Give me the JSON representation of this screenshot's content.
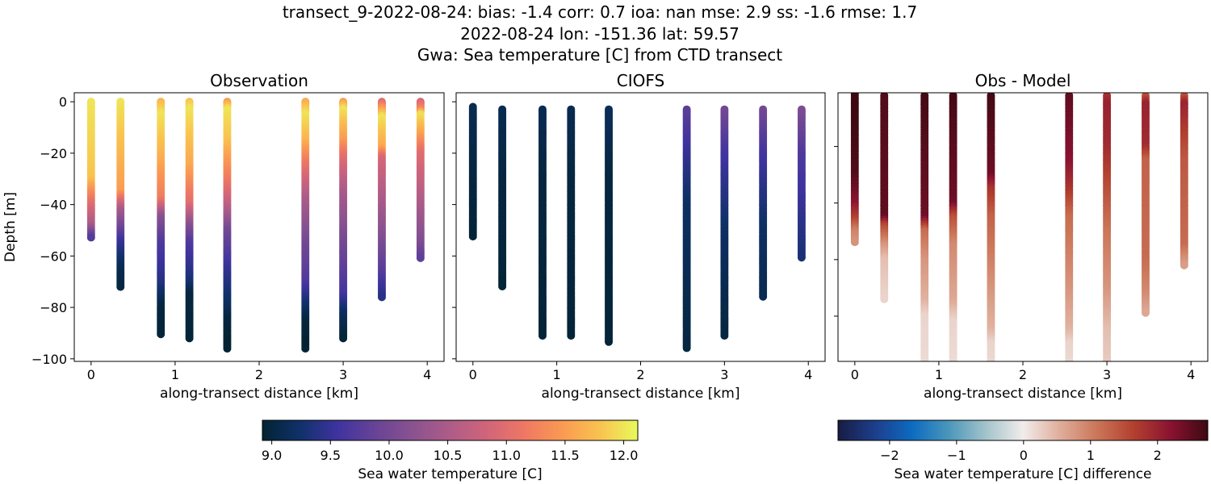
{
  "title_lines": [
    "transect_9-2022-08-24: bias: -1.4  corr: 0.7  ioa: nan  mse: 2.9  ss: -1.6  rmse: 1.7",
    "2022-08-24 lon: -151.36 lat: 59.57",
    "Gwa: Sea temperature [C] from CTD transect"
  ],
  "chart_data": [
    {
      "type": "scatter",
      "title": "Observation",
      "xlabel": "along-transect distance [km]",
      "ylabel": "Depth [m]",
      "xlim": [
        -0.2,
        4.2
      ],
      "ylim": [
        -101,
        3.5
      ],
      "xticks": [
        0,
        1,
        2,
        3,
        4
      ],
      "yticks": [
        0,
        -20,
        -40,
        -60,
        -80,
        -100
      ],
      "colormap": "thermal",
      "clim": [
        8.92,
        12.12
      ],
      "casts": [
        {
          "x": 0,
          "profile": [
            [
              0,
              12
            ],
            [
              30,
              11.8
            ],
            [
              40,
              11
            ],
            [
              48,
              10.5
            ],
            [
              53,
              9.7
            ]
          ]
        },
        {
          "x": 0.35,
          "profile": [
            [
              0,
              12
            ],
            [
              35,
              11.5
            ],
            [
              42,
              10.5
            ],
            [
              55,
              9.5
            ],
            [
              65,
              9.1
            ],
            [
              72,
              9.0
            ]
          ]
        },
        {
          "x": 0.83,
          "profile": [
            [
              0,
              11.7
            ],
            [
              5,
              12
            ],
            [
              20,
              11.7
            ],
            [
              38,
              11.2
            ],
            [
              45,
              10.2
            ],
            [
              55,
              9.7
            ],
            [
              70,
              9.4
            ],
            [
              80,
              9.0
            ],
            [
              91,
              8.95
            ]
          ]
        },
        {
          "x": 1.17,
          "profile": [
            [
              0,
              11.8
            ],
            [
              3,
              12
            ],
            [
              25,
              11.6
            ],
            [
              40,
              11.0
            ],
            [
              48,
              10.2
            ],
            [
              55,
              9.7
            ],
            [
              70,
              9.3
            ],
            [
              75,
              9.0
            ],
            [
              92,
              8.95
            ]
          ]
        },
        {
          "x": 1.62,
          "profile": [
            [
              0,
              11.5
            ],
            [
              3,
              12
            ],
            [
              15,
              11.8
            ],
            [
              30,
              11.2
            ],
            [
              40,
              10.7
            ],
            [
              50,
              10.0
            ],
            [
              65,
              9.5
            ],
            [
              78,
              9.2
            ],
            [
              85,
              9.0
            ],
            [
              96,
              8.9
            ]
          ]
        },
        {
          "x": 2.55,
          "profile": [
            [
              0,
              11.6
            ],
            [
              5,
              12
            ],
            [
              15,
              11.7
            ],
            [
              25,
              11.1
            ],
            [
              38,
              10.5
            ],
            [
              55,
              10
            ],
            [
              70,
              9.7
            ],
            [
              78,
              9.3
            ],
            [
              85,
              9.0
            ],
            [
              96,
              8.9
            ]
          ]
        },
        {
          "x": 3.0,
          "profile": [
            [
              0,
              11.5
            ],
            [
              3,
              12
            ],
            [
              15,
              11.5
            ],
            [
              22,
              11
            ],
            [
              35,
              10.5
            ],
            [
              55,
              10
            ],
            [
              75,
              9.6
            ],
            [
              82,
              9.2
            ],
            [
              92,
              8.95
            ]
          ]
        },
        {
          "x": 3.46,
          "profile": [
            [
              0,
              11
            ],
            [
              3,
              11.5
            ],
            [
              6,
              12
            ],
            [
              18,
              11.6
            ],
            [
              22,
              10.9
            ],
            [
              50,
              10.2
            ],
            [
              65,
              9.8
            ],
            [
              76,
              9.4
            ]
          ]
        },
        {
          "x": 3.92,
          "profile": [
            [
              0,
              10.9
            ],
            [
              3,
              11.3
            ],
            [
              5,
              12
            ],
            [
              12,
              11.6
            ],
            [
              20,
              11
            ],
            [
              40,
              10.5
            ],
            [
              55,
              10.1
            ],
            [
              61,
              9.8
            ]
          ]
        }
      ]
    },
    {
      "type": "scatter",
      "title": "CIOFS",
      "xlabel": "along-transect distance [km]",
      "xlim": [
        -0.2,
        4.2
      ],
      "ylim": [
        -101,
        3.5
      ],
      "xticks": [
        0,
        1,
        2,
        3,
        4
      ],
      "yticks": [
        0,
        -20,
        -40,
        -60,
        -80,
        -100
      ],
      "colormap": "thermal",
      "clim": [
        8.92,
        12.12
      ],
      "casts": [
        {
          "x": 0,
          "profile": [
            [
              2,
              9.1
            ],
            [
              30,
              9.0
            ],
            [
              53,
              8.95
            ]
          ]
        },
        {
          "x": 0.35,
          "profile": [
            [
              3,
              9.1
            ],
            [
              30,
              9.0
            ],
            [
              72,
              8.95
            ]
          ]
        },
        {
          "x": 0.83,
          "profile": [
            [
              3,
              9.1
            ],
            [
              30,
              9.0
            ],
            [
              91,
              8.95
            ]
          ]
        },
        {
          "x": 1.17,
          "profile": [
            [
              3,
              9.1
            ],
            [
              30,
              9.0
            ],
            [
              91,
              8.95
            ]
          ]
        },
        {
          "x": 1.62,
          "profile": [
            [
              3,
              9.15
            ],
            [
              30,
              9.0
            ],
            [
              94,
              8.95
            ]
          ]
        },
        {
          "x": 2.55,
          "profile": [
            [
              3,
              9.8
            ],
            [
              20,
              9.5
            ],
            [
              40,
              9.2
            ],
            [
              96,
              9.0
            ]
          ]
        },
        {
          "x": 3.0,
          "profile": [
            [
              3,
              10.0
            ],
            [
              20,
              9.6
            ],
            [
              50,
              9.2
            ],
            [
              91,
              9.0
            ]
          ]
        },
        {
          "x": 3.46,
          "profile": [
            [
              3,
              10.0
            ],
            [
              20,
              9.6
            ],
            [
              50,
              9.2
            ],
            [
              76,
              9.1
            ]
          ]
        },
        {
          "x": 3.92,
          "profile": [
            [
              3,
              10.1
            ],
            [
              20,
              9.7
            ],
            [
              61,
              9.3
            ]
          ]
        }
      ]
    },
    {
      "type": "scatter",
      "title": "Obs - Model",
      "xlabel": "along-transect distance [km]",
      "xlim": [
        -0.2,
        4.2
      ],
      "ylim": [
        -96,
        -1
      ],
      "xticks": [
        0,
        1,
        2,
        3,
        4
      ],
      "yticks": [
        -20,
        -40,
        -60,
        -80
      ],
      "colormap": "balance",
      "clim": [
        -2.77,
        2.75
      ],
      "casts": [
        {
          "x": 0,
          "profile": [
            [
              1,
              2.8
            ],
            [
              30,
              2.6
            ],
            [
              40,
              2.2
            ],
            [
              46,
              1.6
            ],
            [
              50,
              1.0
            ],
            [
              54,
              0.8
            ]
          ]
        },
        {
          "x": 0.35,
          "profile": [
            [
              2,
              2.6
            ],
            [
              45,
              2.5
            ],
            [
              48,
              1.6
            ],
            [
              55,
              0.8
            ],
            [
              60,
              0.4
            ],
            [
              74,
              0.2
            ]
          ]
        },
        {
          "x": 0.83,
          "profile": [
            [
              2,
              2.7
            ],
            [
              45,
              2.4
            ],
            [
              50,
              1.2
            ],
            [
              60,
              0.8
            ],
            [
              75,
              0.5
            ],
            [
              80,
              0.2
            ],
            [
              96,
              0.15
            ]
          ]
        },
        {
          "x": 1.17,
          "profile": [
            [
              2,
              2.7
            ],
            [
              40,
              2.4
            ],
            [
              45,
              1.5
            ],
            [
              55,
              0.9
            ],
            [
              75,
              0.6
            ],
            [
              82,
              0.2
            ],
            [
              96,
              0.15
            ]
          ]
        },
        {
          "x": 1.62,
          "profile": [
            [
              2,
              2.7
            ],
            [
              30,
              2.4
            ],
            [
              35,
              1.8
            ],
            [
              45,
              1.3
            ],
            [
              60,
              1.0
            ],
            [
              85,
              0.5
            ],
            [
              90,
              0.2
            ],
            [
              99,
              0.15
            ]
          ]
        },
        {
          "x": 2.55,
          "profile": [
            [
              2,
              2.5
            ],
            [
              25,
              2.2
            ],
            [
              35,
              1.8
            ],
            [
              45,
              1.2
            ],
            [
              70,
              0.8
            ],
            [
              85,
              0.5
            ],
            [
              90,
              0.2
            ],
            [
              100,
              0.15
            ]
          ]
        },
        {
          "x": 3.0,
          "profile": [
            [
              2,
              1.8
            ],
            [
              5,
              2.0
            ],
            [
              20,
              1.9
            ],
            [
              35,
              1.5
            ],
            [
              50,
              1.1
            ],
            [
              70,
              0.8
            ],
            [
              85,
              0.4
            ],
            [
              96,
              0.3
            ]
          ]
        },
        {
          "x": 3.46,
          "profile": [
            [
              2,
              1.4
            ],
            [
              5,
              2.0
            ],
            [
              20,
              1.9
            ],
            [
              25,
              1.3
            ],
            [
              60,
              1.2
            ],
            [
              72,
              0.9
            ],
            [
              79,
              0.6
            ]
          ]
        },
        {
          "x": 3.92,
          "profile": [
            [
              2,
              1.4
            ],
            [
              5,
              2.0
            ],
            [
              15,
              1.7
            ],
            [
              25,
              1.4
            ],
            [
              55,
              1.2
            ],
            [
              62,
              0.7
            ]
          ]
        }
      ]
    }
  ],
  "colorbars": [
    {
      "colormap": "thermal",
      "range": [
        8.92,
        12.12
      ],
      "ticks": [
        "9.0",
        "9.5",
        "10.0",
        "10.5",
        "11.0",
        "11.5",
        "12.0"
      ],
      "label": "Sea water temperature [C]"
    },
    {
      "colormap": "balance",
      "range": [
        -2.77,
        2.75
      ],
      "ticks": [
        "−2",
        "−1",
        "0",
        "1",
        "2"
      ],
      "label": "Sea water temperature [C] difference"
    }
  ],
  "colormaps": {
    "thermal": [
      "#032333",
      "#0f3169",
      "#3f339f",
      "#674396",
      "#8a5290",
      "#ae5c88",
      "#d1657a",
      "#ef7863",
      "#fa9a52",
      "#f9c350",
      "#e8fa5b"
    ],
    "balance": [
      "#181c43",
      "#1d3e8c",
      "#0c6bc0",
      "#4b97bb",
      "#a3c3cb",
      "#f1eceb",
      "#dfae9b",
      "#cb7659",
      "#b2402f",
      "#8a1231",
      "#3c0911"
    ]
  }
}
